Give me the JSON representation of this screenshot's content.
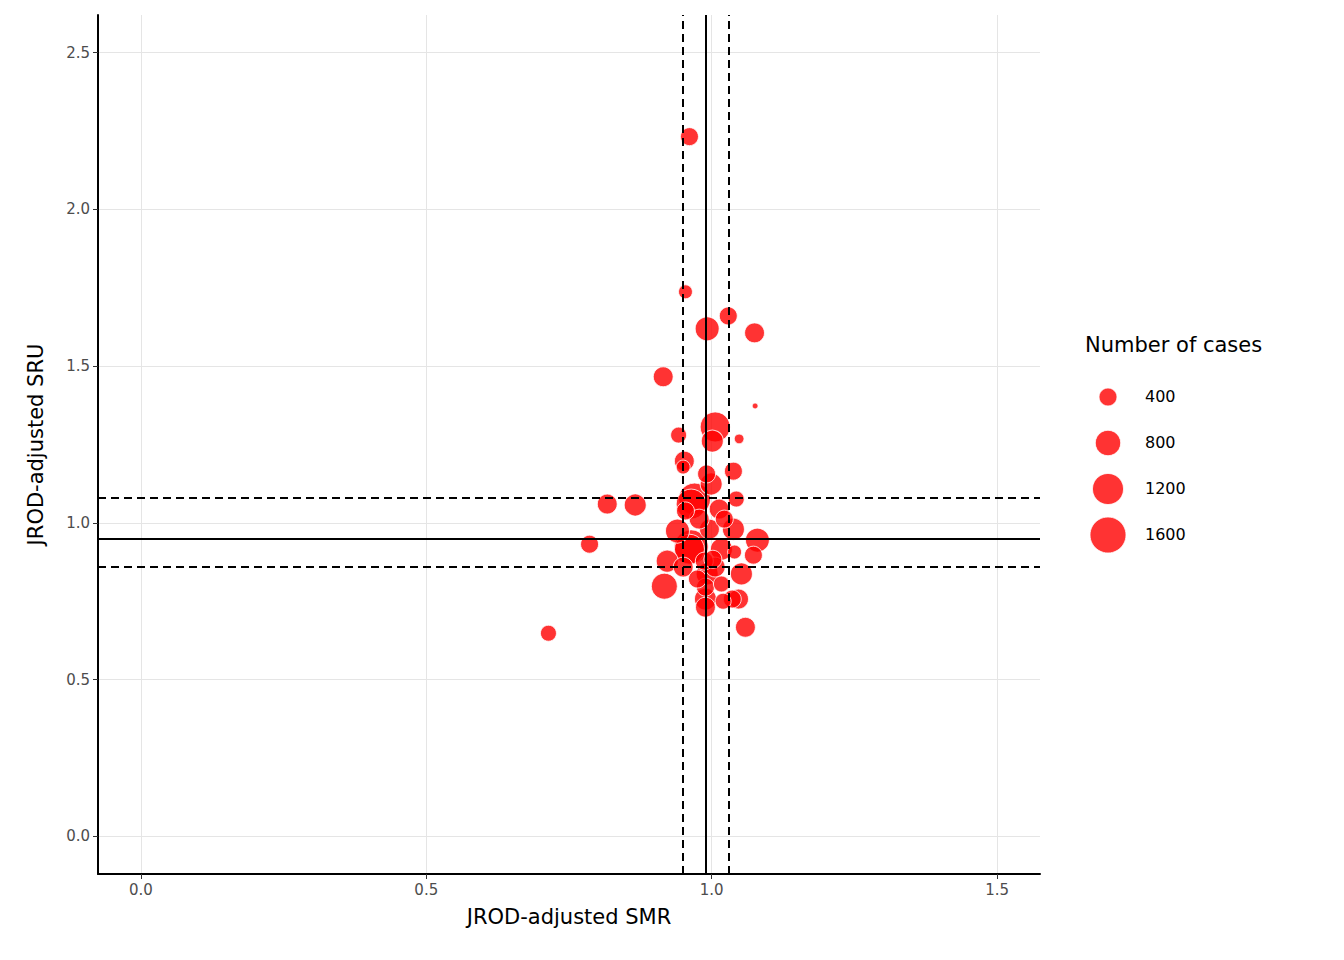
{
  "chart_data": {
    "type": "scatter",
    "x_label": "JROD-adjusted SMR",
    "y_label": "JROD-adjusted SRU",
    "color": "#ff0000",
    "grid": true,
    "xlim": [
      -0.075,
      1.575
    ],
    "ylim": [
      -0.12,
      2.62
    ],
    "xticks": [
      {
        "value": 0,
        "label": "0.0"
      },
      0.5,
      {
        "value": 1,
        "label": "1.0"
      },
      1.5
    ],
    "yticks": [
      {
        "value": 0,
        "label": "0.0"
      },
      0.5,
      {
        "value": 1,
        "label": "1.0"
      },
      1.5,
      {
        "value": 2,
        "label": "2.0"
      },
      2.5
    ],
    "x": [
      0.961,
      0.954,
      0.992,
      1.029,
      1.075,
      0.915,
      1.076,
      0.942,
      1.006,
      1.001,
      1.048,
      0.952,
      0.95,
      1.038,
      0.991,
      0.999,
      1.043,
      0.817,
      0.866,
      0.97,
      0.964,
      0.954,
      1.013,
      1.038,
      0.94,
      1.08,
      0.996,
      0.786,
      0.964,
      0.961,
      0.922,
      1.017,
      1.04,
      1.073,
      0.987,
      0.95,
      1.006,
      1.052,
      0.992,
      0.917,
      0.989,
      1.017,
      1.036,
      1.047,
      0.989,
      0.989,
      1.02,
      1.059,
      0.714,
      0.978,
      1.022,
      0.975,
      1.002
    ],
    "y": [
      2.232,
      1.737,
      1.619,
      1.66,
      1.606,
      1.466,
      1.373,
      1.28,
      1.306,
      1.261,
      1.268,
      1.197,
      1.178,
      1.165,
      1.156,
      1.124,
      1.076,
      1.06,
      1.057,
      1.076,
      1.06,
      1.038,
      1.044,
      0.98,
      0.974,
      0.945,
      0.98,
      0.932,
      0.923,
      0.916,
      0.878,
      0.916,
      0.907,
      0.897,
      0.878,
      0.859,
      0.859,
      0.837,
      0.837,
      0.798,
      0.795,
      0.805,
      0.757,
      0.757,
      0.757,
      0.731,
      0.75,
      0.667,
      0.648,
      1.012,
      1.012,
      0.821,
      0.884
    ],
    "size": [
      400,
      240,
      710,
      400,
      490,
      490,
      44,
      316,
      1110,
      600,
      120,
      490,
      240,
      400,
      400,
      600,
      316,
      490,
      600,
      1260,
      1110,
      400,
      490,
      600,
      710,
      710,
      490,
      400,
      1430,
      1110,
      600,
      600,
      240,
      400,
      400,
      490,
      490,
      600,
      600,
      835,
      400,
      316,
      400,
      490,
      600,
      490,
      316,
      490,
      316,
      490,
      400,
      400,
      400
    ],
    "size_legend": {
      "title": "Number of cases",
      "values": [
        400,
        800,
        1200,
        1600
      ]
    },
    "x_ref": {
      "value": 0.994,
      "ci": [
        0.954,
        1.031
      ]
    },
    "y_ref": {
      "value": 0.948,
      "ci": [
        0.859,
        1.082
      ]
    }
  }
}
